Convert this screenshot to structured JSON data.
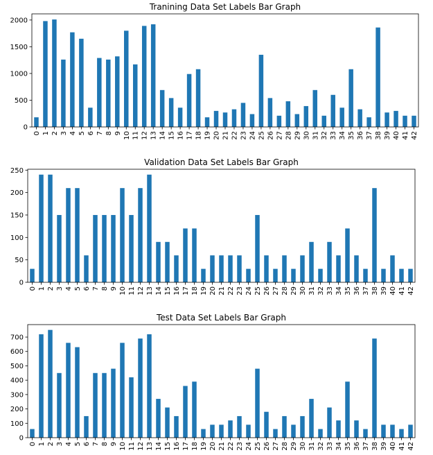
{
  "chart_data": [
    {
      "type": "bar",
      "title": "Tranining Data Set Labels Bar Graph",
      "categories": [
        "0",
        "1",
        "2",
        "3",
        "4",
        "5",
        "6",
        "7",
        "8",
        "9",
        "10",
        "11",
        "12",
        "13",
        "14",
        "15",
        "16",
        "17",
        "18",
        "19",
        "20",
        "21",
        "22",
        "23",
        "24",
        "25",
        "26",
        "27",
        "28",
        "29",
        "30",
        "31",
        "32",
        "33",
        "34",
        "35",
        "36",
        "37",
        "38",
        "39",
        "40",
        "41",
        "42"
      ],
      "values": [
        180,
        1980,
        2010,
        1260,
        1770,
        1650,
        360,
        1290,
        1260,
        1320,
        1800,
        1170,
        1890,
        1920,
        690,
        540,
        360,
        990,
        1080,
        180,
        300,
        270,
        330,
        450,
        240,
        1350,
        540,
        210,
        480,
        240,
        390,
        690,
        210,
        600,
        360,
        1080,
        330,
        180,
        1860,
        270,
        300,
        210,
        210
      ],
      "yticks": [
        0,
        500,
        1000,
        1500,
        2000
      ],
      "ylim": [
        0,
        2115
      ],
      "color": "#1f77b4"
    },
    {
      "type": "bar",
      "title": "Validation Data Set Labels Bar Graph",
      "categories": [
        "0",
        "1",
        "2",
        "3",
        "4",
        "5",
        "6",
        "7",
        "8",
        "9",
        "10",
        "11",
        "12",
        "13",
        "14",
        "15",
        "16",
        "17",
        "18",
        "19",
        "20",
        "21",
        "22",
        "23",
        "24",
        "25",
        "26",
        "27",
        "28",
        "29",
        "30",
        "31",
        "32",
        "33",
        "34",
        "35",
        "36",
        "37",
        "38",
        "39",
        "40",
        "41",
        "42"
      ],
      "values": [
        30,
        240,
        240,
        150,
        210,
        210,
        60,
        150,
        150,
        150,
        210,
        150,
        210,
        240,
        90,
        90,
        60,
        120,
        120,
        30,
        60,
        60,
        60,
        60,
        30,
        150,
        60,
        30,
        60,
        30,
        60,
        90,
        30,
        90,
        60,
        120,
        60,
        30,
        210,
        30,
        60,
        30,
        30
      ],
      "yticks": [
        0,
        50,
        100,
        150,
        200,
        250
      ],
      "ylim": [
        0,
        252
      ],
      "color": "#1f77b4"
    },
    {
      "type": "bar",
      "title": "Test Data Set Labels Bar Graph",
      "categories": [
        "0",
        "1",
        "2",
        "3",
        "4",
        "5",
        "6",
        "7",
        "8",
        "9",
        "10",
        "11",
        "12",
        "13",
        "14",
        "15",
        "16",
        "17",
        "18",
        "19",
        "20",
        "21",
        "22",
        "23",
        "24",
        "25",
        "26",
        "27",
        "28",
        "29",
        "30",
        "31",
        "32",
        "33",
        "34",
        "35",
        "36",
        "37",
        "38",
        "39",
        "40",
        "41",
        "42"
      ],
      "values": [
        60,
        720,
        750,
        450,
        660,
        630,
        150,
        450,
        450,
        480,
        660,
        420,
        690,
        720,
        270,
        210,
        150,
        360,
        390,
        60,
        90,
        90,
        120,
        150,
        90,
        480,
        180,
        60,
        150,
        90,
        150,
        270,
        60,
        210,
        120,
        390,
        120,
        60,
        690,
        90,
        90,
        60,
        90
      ],
      "yticks": [
        0,
        100,
        200,
        300,
        400,
        500,
        600,
        700
      ],
      "ylim": [
        0,
        787
      ],
      "color": "#1f77b4"
    }
  ]
}
